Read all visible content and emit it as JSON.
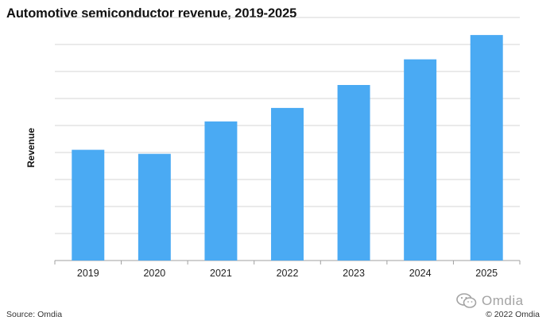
{
  "chart_data": {
    "type": "bar",
    "title": "Automotive semiconductor revenue, 2019-2025",
    "xlabel": "",
    "ylabel": "Revenue",
    "categories": [
      "2019",
      "2020",
      "2021",
      "2022",
      "2023",
      "2024",
      "2025"
    ],
    "values": [
      4.1,
      3.95,
      5.15,
      5.65,
      6.5,
      7.45,
      8.35
    ],
    "ylim": [
      0,
      9
    ],
    "grid": true,
    "y_tick_labels_shown": false,
    "colors": {
      "bar": "#4aaaf3",
      "grid": "#d4d4d4",
      "axis": "#a0a0a0"
    }
  },
  "footer": {
    "source": "Source: Omdia",
    "copyright": "© 2022 Omdia"
  },
  "watermark": {
    "text": "Omdia",
    "icon": "wechat-icon"
  }
}
